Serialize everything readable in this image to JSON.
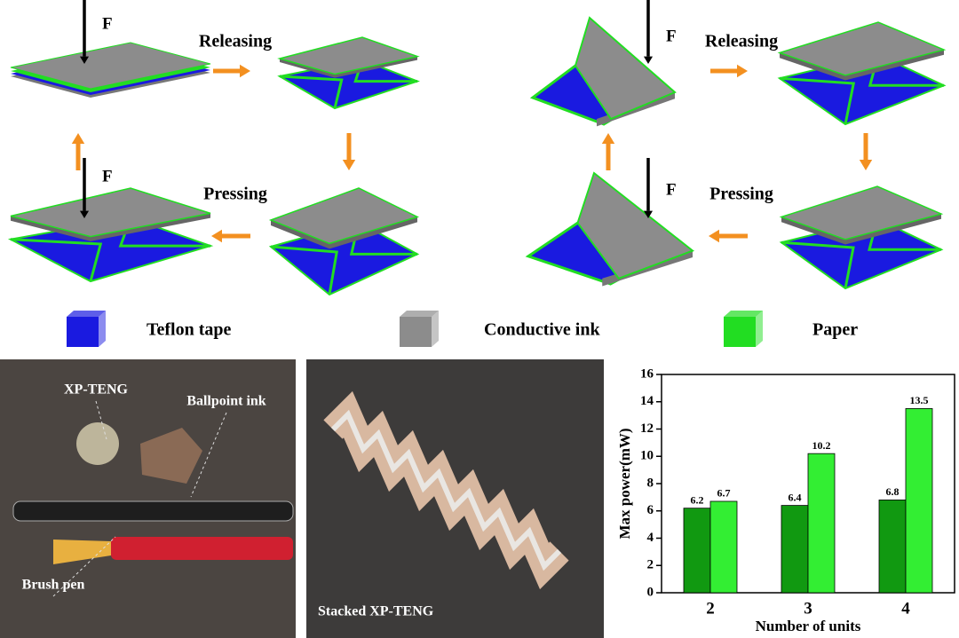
{
  "cycles": [
    {
      "top_force": "F",
      "release": "Releasing",
      "press": "Pressing",
      "bottom_force": "F"
    },
    {
      "top_force": "F",
      "release": "Releasing",
      "press": "Pressing",
      "bottom_force": "F"
    }
  ],
  "legend": [
    {
      "label": "Teflon tape",
      "color": "#1a1ae0"
    },
    {
      "label": "Conductive ink",
      "color": "#8c8c8c"
    },
    {
      "label": "Paper",
      "color": "#22dd22"
    }
  ],
  "photos": [
    {
      "labels": [
        "XP-TENG",
        "Ballpoint ink",
        "Brush pen"
      ]
    },
    {
      "labels": [
        "Stacked XP-TENG"
      ]
    }
  ],
  "chart_data": {
    "type": "bar",
    "y_label": "Max power(mW)",
    "x_label": "Number of units",
    "categories": [
      "2",
      "3",
      "4"
    ],
    "series": [
      {
        "color": "#119911",
        "values": [
          6.2,
          6.4,
          6.8
        ]
      },
      {
        "color": "#33ee33",
        "values": [
          6.7,
          10.2,
          13.5
        ]
      }
    ],
    "ylim": [
      0,
      16
    ],
    "yticks": [
      0,
      2,
      4,
      6,
      8,
      10,
      12,
      14,
      16
    ]
  }
}
